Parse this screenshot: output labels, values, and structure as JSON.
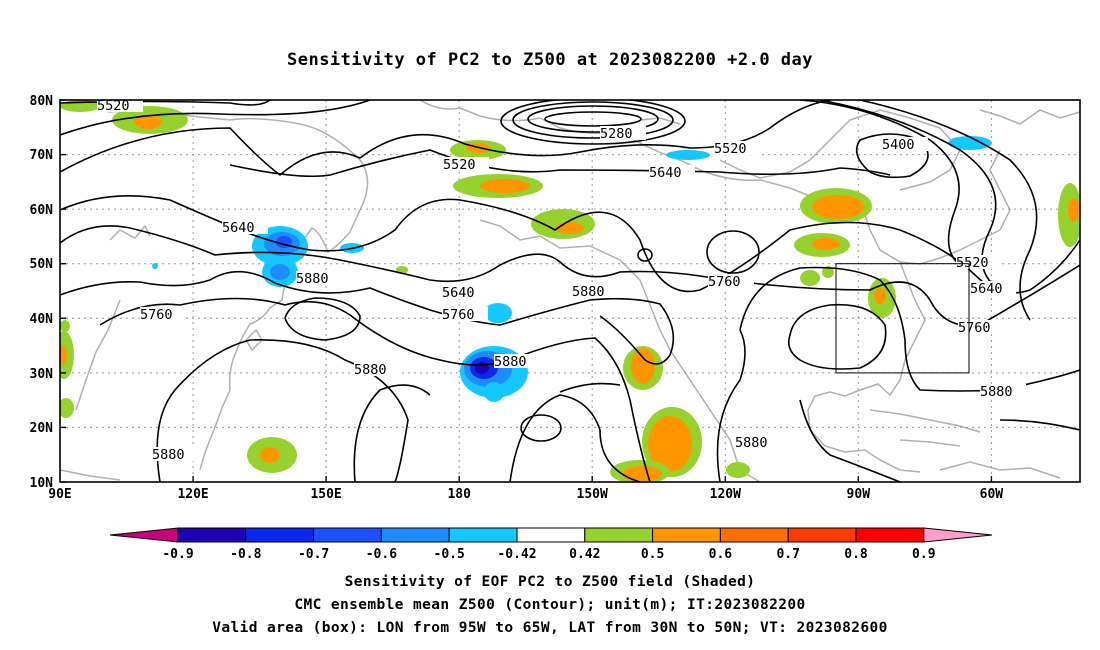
{
  "title": "Sensitivity of PC2 to Z500 at 2023082200 +2.0 day",
  "map": {
    "lat_labels": [
      "80N",
      "70N",
      "60N",
      "50N",
      "40N",
      "30N",
      "20N",
      "10N"
    ],
    "lon_labels": [
      "90E",
      "120E",
      "150E",
      "180",
      "150W",
      "120W",
      "90W",
      "60W"
    ],
    "valid_box": {
      "lon_from": "95W",
      "lon_to": "65W",
      "lat_from": "30N",
      "lat_to": "50N"
    },
    "contour_labels": [
      "5520",
      "5280",
      "5520",
      "5520",
      "5400",
      "5640",
      "5640",
      "5880",
      "5640",
      "5760",
      "5880",
      "5760",
      "5520",
      "5640",
      "5760",
      "5760",
      "5880",
      "5880",
      "5880",
      "5880",
      "5880"
    ]
  },
  "colorbar": {
    "tick_labels": [
      "-0.9",
      "-0.8",
      "-0.7",
      "-0.6",
      "-0.5",
      "-0.42",
      "0.42",
      "0.5",
      "0.6",
      "0.7",
      "0.8",
      "0.9"
    ],
    "colors": [
      "#c8007a",
      "#1e00b4",
      "#0a28f0",
      "#1e50ff",
      "#1e8cff",
      "#14c8ff",
      "#ffffff",
      "#96d22d",
      "#ff9600",
      "#ff6e00",
      "#ff3c00",
      "#ff0000",
      "#ff9ec8"
    ]
  },
  "captions": {
    "line1": "Sensitivity of EOF PC2 to Z500 field (Shaded)",
    "line2": "CMC ensemble mean Z500 (Contour); unit(m); IT:2023082200",
    "line3": "Valid area (box): LON from 95W to 65W, LAT from 30N to 50N; VT: 2023082600"
  }
}
